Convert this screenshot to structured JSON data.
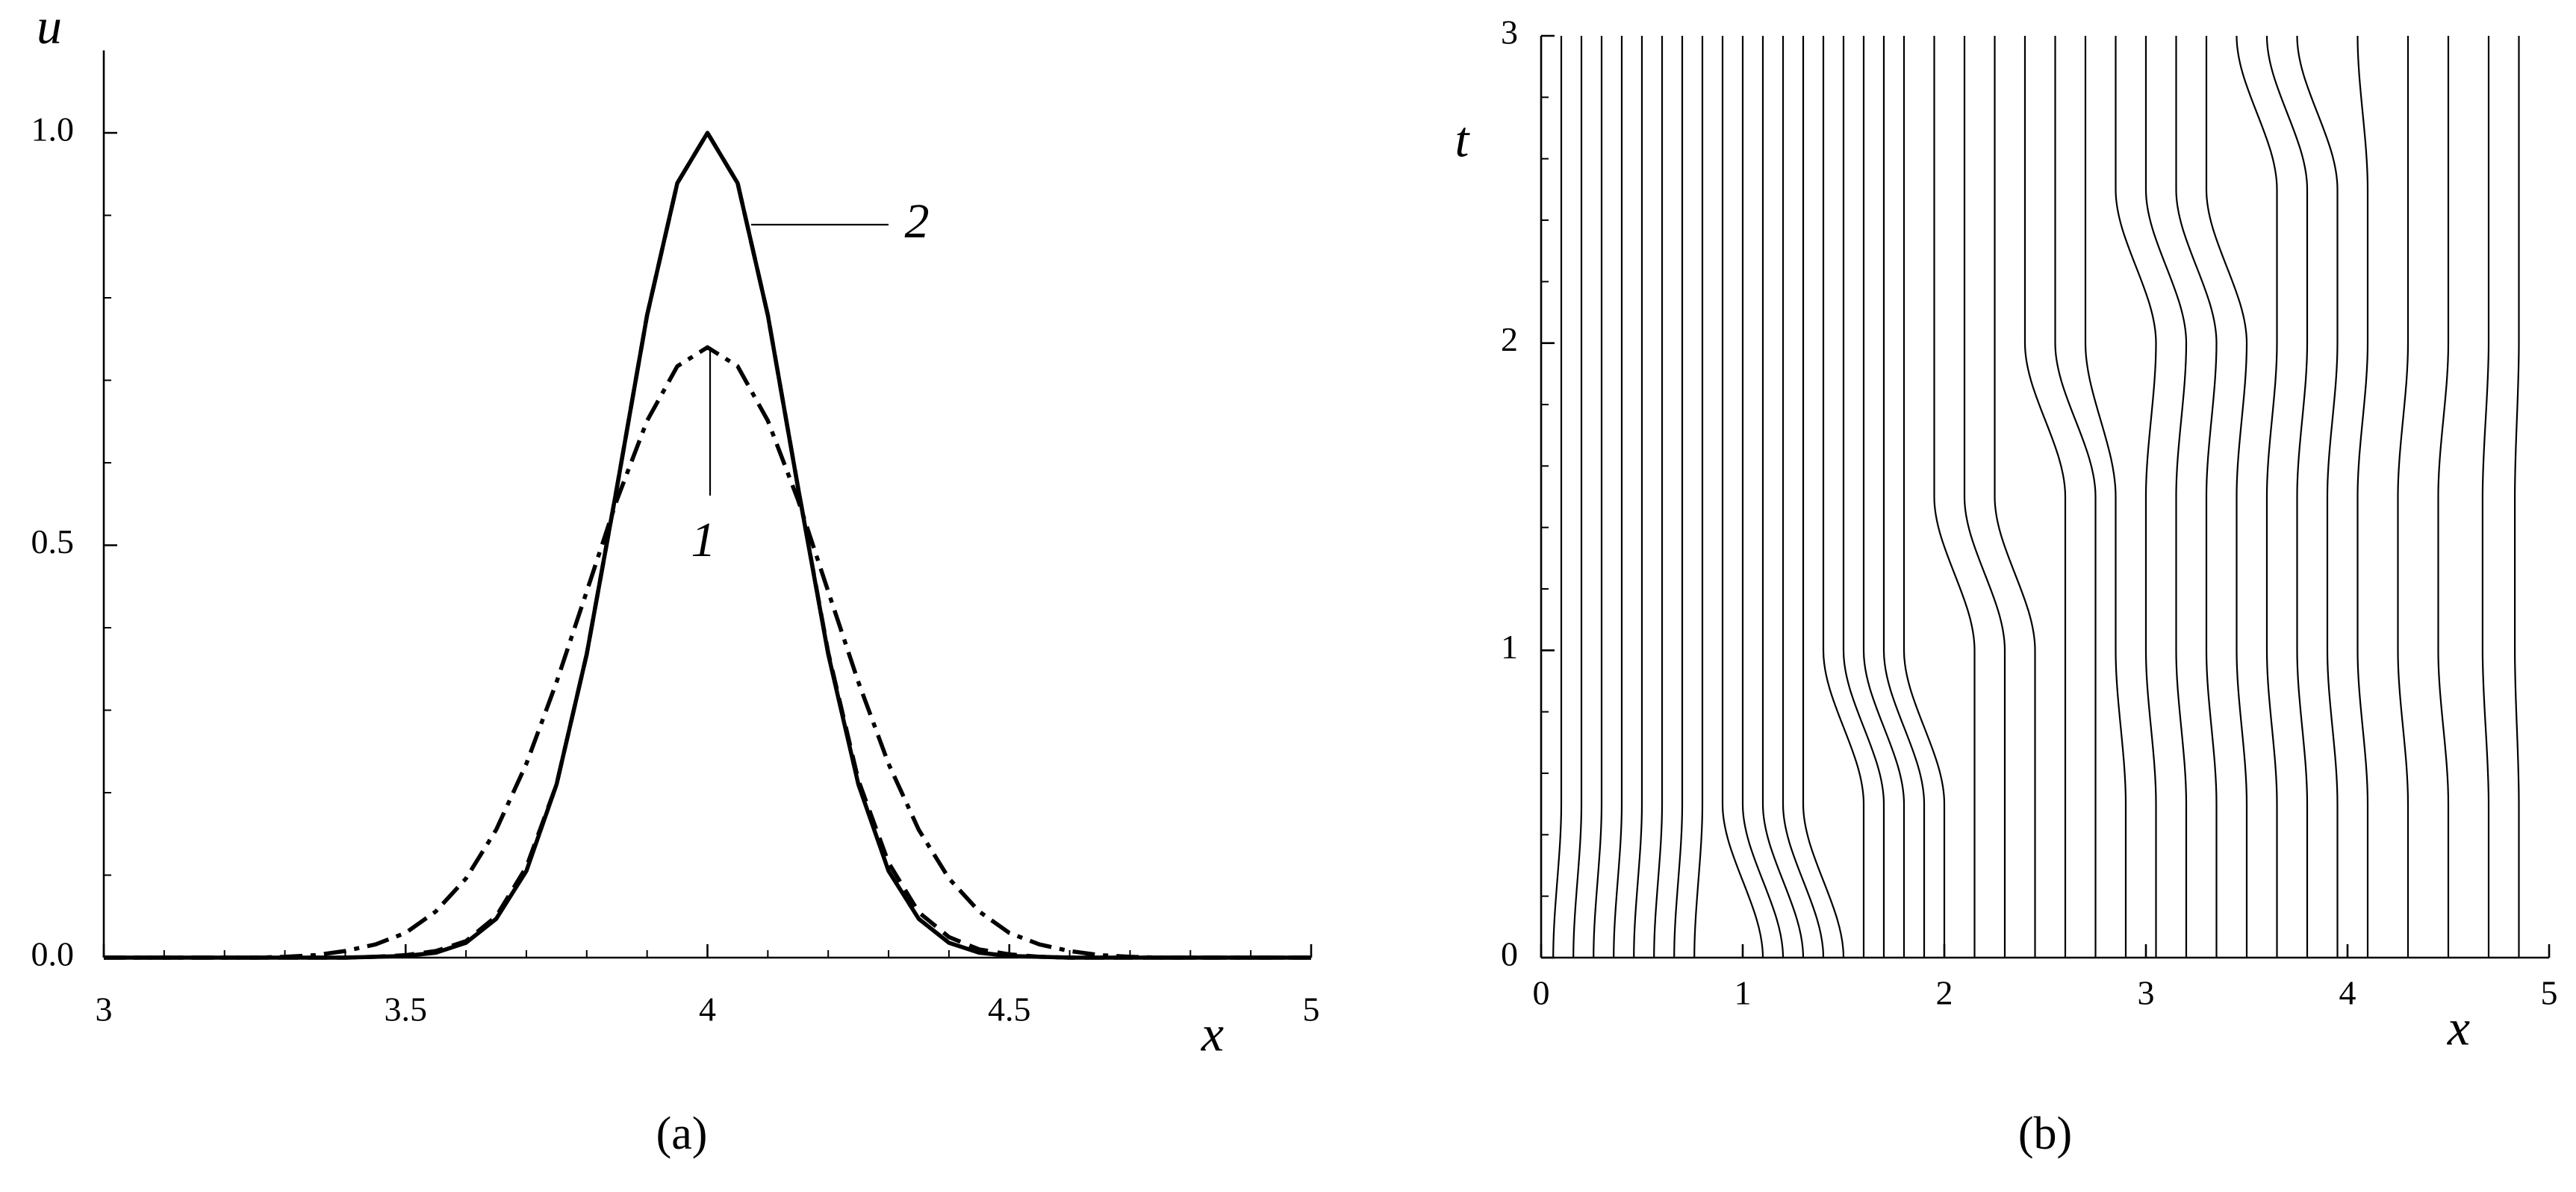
{
  "chart_data": [
    {
      "type": "line",
      "xlabel": "x",
      "ylabel": "u",
      "panel_label": "(a)",
      "xlim": [
        3,
        5
      ],
      "ylim": [
        0,
        1.1
      ],
      "xticks": [
        3,
        3.5,
        4,
        4.5,
        5
      ],
      "yticks": [
        {
          "value": 0,
          "label": "0.0"
        },
        {
          "value": 0.5,
          "label": "0.5"
        },
        {
          "value": 1,
          "label": "1.0"
        }
      ],
      "xminor": [
        3.1,
        3.2,
        3.3,
        3.4,
        3.6,
        3.7,
        3.8,
        3.9,
        4.1,
        4.2,
        4.3,
        4.4,
        4.6,
        4.7,
        4.8,
        4.9
      ],
      "yminor": [
        0.1,
        0.2,
        0.3,
        0.4,
        0.6,
        0.7,
        0.8,
        0.9
      ],
      "annotations": [
        "2",
        "1"
      ],
      "x": [
        3,
        3.05,
        3.1,
        3.15,
        3.2,
        3.25,
        3.3,
        3.35,
        3.4,
        3.45,
        3.5,
        3.55,
        3.6,
        3.65,
        3.7,
        3.75,
        3.8,
        3.85,
        3.9,
        3.95,
        4,
        4.05,
        4.1,
        4.15,
        4.2,
        4.25,
        4.3,
        4.35,
        4.4,
        4.45,
        4.5,
        4.55,
        4.6,
        4.65,
        4.7,
        4.75,
        4.8,
        4.85,
        4.9,
        4.95,
        5
      ],
      "series": [
        {
          "color": "#000000",
          "linestyle": "solid",
          "values": [
            0,
            0,
            0,
            0,
            0,
            0,
            0,
            0,
            0,
            0.001,
            0.002,
            0.006,
            0.018,
            0.047,
            0.105,
            0.21,
            0.368,
            0.57,
            0.779,
            0.939,
            1,
            0.939,
            0.779,
            0.57,
            0.368,
            0.21,
            0.105,
            0.047,
            0.018,
            0.006,
            0.002,
            0.001,
            0,
            0,
            0,
            0,
            0,
            0,
            0,
            0,
            0
          ]
        },
        {
          "color": "#000000",
          "linestyle": "dashed",
          "values": [
            0,
            0,
            0,
            0,
            0,
            0,
            0,
            0,
            0,
            0.001,
            0.003,
            0.008,
            0.02,
            0.05,
            0.11,
            0.21,
            0.368,
            0.57,
            0.779,
            0.939,
            1,
            0.939,
            0.779,
            0.57,
            0.37,
            0.215,
            0.115,
            0.055,
            0.025,
            0.01,
            0.004,
            0.001,
            0,
            0,
            0,
            0,
            0,
            0,
            0,
            0,
            0
          ]
        },
        {
          "color": "#000000",
          "linestyle": "dashdot",
          "values": [
            0,
            0,
            0,
            0,
            0,
            0,
            0.001,
            0.003,
            0.008,
            0.016,
            0.03,
            0.056,
            0.096,
            0.155,
            0.235,
            0.334,
            0.444,
            0.555,
            0.651,
            0.717,
            0.74,
            0.717,
            0.651,
            0.555,
            0.444,
            0.334,
            0.235,
            0.155,
            0.096,
            0.056,
            0.03,
            0.016,
            0.008,
            0.003,
            0.001,
            0,
            0,
            0,
            0,
            0,
            0
          ]
        }
      ]
    },
    {
      "type": "trajectories",
      "xlabel": "x",
      "ylabel": "t",
      "panel_label": "(b)",
      "xlim": [
        0,
        5
      ],
      "ylim": [
        0,
        3
      ],
      "xticks": [
        0,
        1,
        2,
        3,
        4,
        5
      ],
      "yticks": [
        0,
        1,
        2,
        3
      ],
      "yminor": [
        0.2,
        0.4,
        0.6,
        0.8,
        1.2,
        1.4,
        1.6,
        1.8,
        2.2,
        2.4,
        2.6,
        2.8
      ],
      "color": "#000000",
      "y": [
        0,
        0.5,
        1,
        1.5,
        2,
        2.5,
        3
      ],
      "series": [
        {
          "x": [
            0.06,
            0.1,
            0.1,
            0.1,
            0.1,
            0.1,
            0.1
          ]
        },
        {
          "x": [
            0.16,
            0.2,
            0.2,
            0.2,
            0.2,
            0.2,
            0.2
          ]
        },
        {
          "x": [
            0.26,
            0.3,
            0.3,
            0.3,
            0.3,
            0.3,
            0.3
          ]
        },
        {
          "x": [
            0.36,
            0.4,
            0.4,
            0.4,
            0.4,
            0.4,
            0.4
          ]
        },
        {
          "x": [
            0.46,
            0.5,
            0.5,
            0.5,
            0.5,
            0.5,
            0.5
          ]
        },
        {
          "x": [
            0.56,
            0.6,
            0.6,
            0.6,
            0.6,
            0.6,
            0.6
          ]
        },
        {
          "x": [
            0.66,
            0.7,
            0.7,
            0.7,
            0.7,
            0.7,
            0.7
          ]
        },
        {
          "x": [
            0.76,
            0.8,
            0.8,
            0.8,
            0.8,
            0.8,
            0.8
          ]
        },
        {
          "x": [
            1.1,
            0.9,
            0.9,
            0.9,
            0.9,
            0.9,
            0.9
          ]
        },
        {
          "x": [
            1.2,
            1.0,
            1.0,
            1.0,
            1.0,
            1.0,
            1.0
          ]
        },
        {
          "x": [
            1.3,
            1.1,
            1.1,
            1.1,
            1.1,
            1.1,
            1.1
          ]
        },
        {
          "x": [
            1.4,
            1.2,
            1.2,
            1.2,
            1.2,
            1.2,
            1.2
          ]
        },
        {
          "x": [
            1.5,
            1.3,
            1.3,
            1.3,
            1.3,
            1.3,
            1.3
          ]
        },
        {
          "x": [
            1.6,
            1.6,
            1.4,
            1.4,
            1.4,
            1.4,
            1.4
          ]
        },
        {
          "x": [
            1.7,
            1.7,
            1.5,
            1.5,
            1.5,
            1.5,
            1.5
          ]
        },
        {
          "x": [
            1.8,
            1.8,
            1.6,
            1.6,
            1.6,
            1.6,
            1.6
          ]
        },
        {
          "x": [
            1.9,
            1.9,
            1.7,
            1.7,
            1.7,
            1.7,
            1.7
          ]
        },
        {
          "x": [
            2.0,
            2.0,
            1.8,
            1.8,
            1.8,
            1.8,
            1.8
          ]
        },
        {
          "x": [
            2.15,
            2.15,
            2.15,
            1.95,
            1.95,
            1.95,
            1.95
          ]
        },
        {
          "x": [
            2.3,
            2.3,
            2.3,
            2.1,
            2.1,
            2.1,
            2.1
          ]
        },
        {
          "x": [
            2.45,
            2.45,
            2.45,
            2.25,
            2.25,
            2.25,
            2.25
          ]
        },
        {
          "x": [
            2.6,
            2.6,
            2.6,
            2.6,
            2.4,
            2.4,
            2.4
          ]
        },
        {
          "x": [
            2.75,
            2.75,
            2.75,
            2.75,
            2.55,
            2.55,
            2.55
          ]
        },
        {
          "x": [
            2.9,
            2.9,
            2.85,
            2.85,
            2.7,
            2.7,
            2.7
          ]
        },
        {
          "x": [
            3.05,
            3.05,
            3.0,
            3.0,
            3.05,
            2.85,
            2.85
          ]
        },
        {
          "x": [
            3.2,
            3.2,
            3.15,
            3.15,
            3.2,
            3.0,
            3.0
          ]
        },
        {
          "x": [
            3.35,
            3.35,
            3.3,
            3.3,
            3.35,
            3.15,
            3.15
          ]
        },
        {
          "x": [
            3.5,
            3.5,
            3.45,
            3.45,
            3.5,
            3.3,
            3.3
          ]
        },
        {
          "x": [
            3.65,
            3.65,
            3.6,
            3.6,
            3.65,
            3.65,
            3.45
          ]
        },
        {
          "x": [
            3.8,
            3.8,
            3.75,
            3.75,
            3.8,
            3.8,
            3.6
          ]
        },
        {
          "x": [
            3.95,
            3.95,
            3.9,
            3.9,
            3.95,
            3.95,
            3.75
          ]
        },
        {
          "x": [
            4.1,
            4.1,
            4.05,
            4.05,
            4.1,
            4.1,
            4.05
          ]
        },
        {
          "x": [
            4.3,
            4.3,
            4.25,
            4.25,
            4.3,
            4.3,
            4.3
          ]
        },
        {
          "x": [
            4.5,
            4.5,
            4.45,
            4.45,
            4.5,
            4.5,
            4.5
          ]
        },
        {
          "x": [
            4.7,
            4.7,
            4.67,
            4.67,
            4.7,
            4.7,
            4.7
          ]
        },
        {
          "x": [
            4.85,
            4.85,
            4.83,
            4.83,
            4.85,
            4.85,
            4.85
          ]
        }
      ]
    }
  ]
}
